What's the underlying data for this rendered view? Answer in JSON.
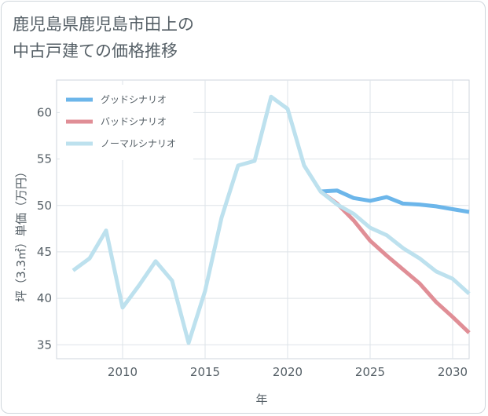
{
  "page": {
    "title": "鹿児島県鹿児島市田上の\n中古戸建ての価格推移"
  },
  "chart_data": {
    "type": "line",
    "title": "鹿児島県鹿児島市田上の中古戸建ての価格推移",
    "xlabel": "年",
    "ylabel": "坪（3.3㎡）単価（万円）",
    "xlim": [
      2006,
      2031
    ],
    "ylim": [
      33.5,
      63.5
    ],
    "xticks": [
      2010,
      2015,
      2020,
      2025,
      2030
    ],
    "yticks": [
      35,
      40,
      45,
      50,
      55,
      60
    ],
    "grid": true,
    "legend_position": "top-left",
    "series": [
      {
        "name": "グッドシナリオ",
        "color": "#6cb6ea",
        "x": [
          2022,
          2023,
          2024,
          2025,
          2026,
          2027,
          2028,
          2029,
          2030,
          2031
        ],
        "values": [
          51.5,
          51.6,
          50.8,
          50.5,
          50.9,
          50.2,
          50.1,
          49.9,
          49.6,
          49.3
        ]
      },
      {
        "name": "バッドシナリオ",
        "color": "#e08e96",
        "x": [
          2022,
          2023,
          2024,
          2025,
          2026,
          2027,
          2028,
          2029,
          2030,
          2031
        ],
        "values": [
          51.5,
          50.2,
          48.4,
          46.2,
          44.6,
          43.1,
          41.6,
          39.6,
          38.0,
          36.3
        ]
      },
      {
        "name": "ノーマルシナリオ",
        "color": "#bde1ee",
        "x": [
          2007,
          2008,
          2009,
          2010,
          2011,
          2012,
          2013,
          2014,
          2015,
          2016,
          2017,
          2018,
          2019,
          2020,
          2021,
          2022,
          2023,
          2024,
          2025,
          2026,
          2027,
          2028,
          2029,
          2030,
          2031
        ],
        "values": [
          43.0,
          44.3,
          47.3,
          39.0,
          41.4,
          44.0,
          41.9,
          35.2,
          40.8,
          48.7,
          54.3,
          54.8,
          61.7,
          60.4,
          54.3,
          51.5,
          50.1,
          49.1,
          47.6,
          46.8,
          45.4,
          44.3,
          42.9,
          42.1,
          40.5
        ]
      }
    ]
  }
}
